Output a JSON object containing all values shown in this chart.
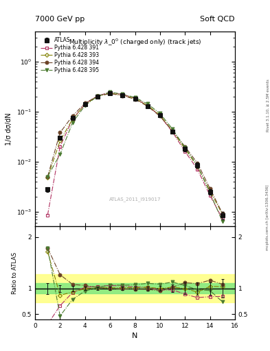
{
  "title_top_left": "7000 GeV pp",
  "title_top_right": "Soft QCD",
  "plot_title": "Multiplicity $\\lambda\\_0^0$ (charged only) (track jets)",
  "watermark": "ATLAS_2011_I919017",
  "right_label_top": "Rivet 3.1.10, ≥ 2.5M events",
  "right_label_bottom": "mcplots.cern.ch [arXiv:1306.3436]",
  "ylabel_main": "1/σ dσ/dN",
  "ylabel_ratio": "Ratio to ATLAS",
  "xlabel": "N",
  "atlas_x": [
    1,
    2,
    3,
    4,
    5,
    6,
    7,
    8,
    9,
    10,
    11,
    12,
    13,
    14,
    15
  ],
  "atlas_y": [
    0.0028,
    0.03,
    0.076,
    0.14,
    0.2,
    0.23,
    0.21,
    0.18,
    0.13,
    0.085,
    0.04,
    0.018,
    0.0085,
    0.0025,
    0.00085
  ],
  "atlas_yerr": [
    0.0003,
    0.002,
    0.004,
    0.005,
    0.006,
    0.007,
    0.007,
    0.006,
    0.005,
    0.004,
    0.003,
    0.002,
    0.001,
    0.0003,
    0.00015
  ],
  "p391_x": [
    1,
    2,
    3,
    4,
    5,
    6,
    7,
    8,
    9,
    10,
    11,
    12,
    13,
    14,
    15
  ],
  "p391_y": [
    0.00085,
    0.02,
    0.07,
    0.143,
    0.208,
    0.243,
    0.22,
    0.185,
    0.133,
    0.082,
    0.039,
    0.016,
    0.007,
    0.0021,
    0.00072
  ],
  "p393_x": [
    1,
    2,
    3,
    4,
    5,
    6,
    7,
    8,
    9,
    10,
    11,
    12,
    13,
    14,
    15
  ],
  "p393_y": [
    0.0048,
    0.026,
    0.071,
    0.139,
    0.203,
    0.233,
    0.213,
    0.183,
    0.133,
    0.085,
    0.041,
    0.018,
    0.0079,
    0.0026,
    0.00088
  ],
  "p394_x": [
    1,
    2,
    3,
    4,
    5,
    6,
    7,
    8,
    9,
    10,
    11,
    12,
    13,
    14,
    15
  ],
  "p394_y": [
    0.005,
    0.038,
    0.082,
    0.148,
    0.204,
    0.23,
    0.208,
    0.178,
    0.128,
    0.081,
    0.041,
    0.02,
    0.0093,
    0.0029,
    0.00092
  ],
  "p395_x": [
    1,
    2,
    3,
    4,
    5,
    6,
    7,
    8,
    9,
    10,
    11,
    12,
    13,
    14,
    15
  ],
  "p395_y": [
    0.005,
    0.014,
    0.06,
    0.133,
    0.203,
    0.246,
    0.223,
    0.193,
    0.143,
    0.092,
    0.045,
    0.019,
    0.0083,
    0.0024,
    0.00063
  ],
  "color_391": "#b03060",
  "color_393": "#808000",
  "color_394": "#6b4226",
  "color_395": "#4a7a30",
  "color_atlas": "#111111",
  "band_green_lo": 0.9,
  "band_green_hi": 1.1,
  "band_yellow_lo": 0.73,
  "band_yellow_hi": 1.27,
  "ylim_main": [
    0.0005,
    4.0
  ],
  "ylim_ratio": [
    0.4,
    2.2
  ],
  "xlim": [
    0.0,
    16.0
  ]
}
